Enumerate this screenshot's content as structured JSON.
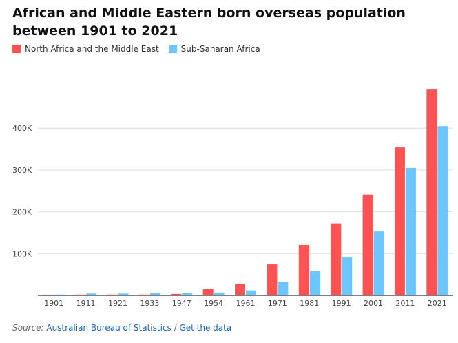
{
  "title": "African and Middle Eastern born overseas population between 1901 to 2021",
  "colors": {
    "north_africa": "#ff5252",
    "sub_saharan": "#6ec6ff",
    "grid": "#dddddd",
    "axis": "#333333"
  },
  "source": {
    "label": "Source:",
    "org": "Australian Bureau of Statistics",
    "separator": "/",
    "link": "Get the data"
  },
  "chart_data": {
    "type": "bar",
    "categories": [
      "1901",
      "1911",
      "1921",
      "1933",
      "1947",
      "1954",
      "1961",
      "1971",
      "1981",
      "1991",
      "2001",
      "2011",
      "2021"
    ],
    "series": [
      {
        "name": "North Africa and the Middle East",
        "values": [
          1800,
          2000,
          2000,
          2000,
          3500,
          15000,
          28000,
          74000,
          122000,
          172000,
          241000,
          354000,
          494000
        ]
      },
      {
        "name": "Sub-Saharan Africa",
        "values": [
          2000,
          4500,
          4500,
          6500,
          6500,
          7000,
          12000,
          33000,
          58000,
          92000,
          153000,
          305000,
          405000
        ]
      }
    ],
    "yticks": [
      "100K",
      "200K",
      "300K",
      "400K"
    ],
    "ytick_values": [
      100000,
      200000,
      300000,
      400000
    ],
    "ylim": [
      0,
      500000
    ],
    "grid": true,
    "legend": "top-left"
  }
}
